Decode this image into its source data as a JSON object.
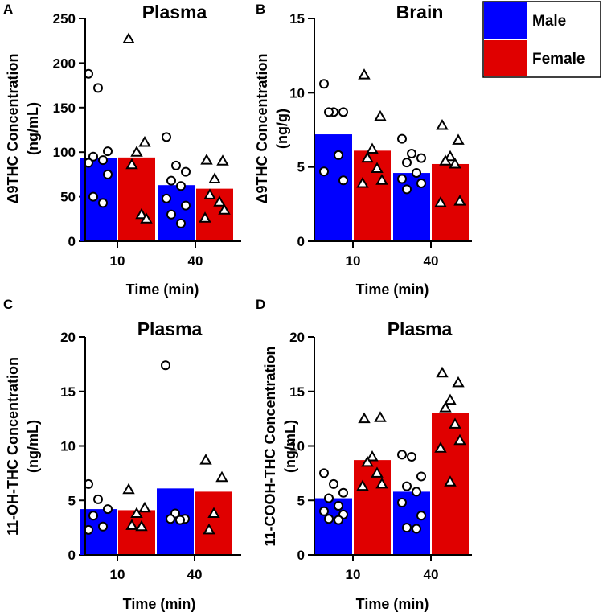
{
  "legend": [
    {
      "label": "Male",
      "color": "#0000ff"
    },
    {
      "label": "Female",
      "color": "#e00000"
    }
  ],
  "colors": {
    "male": "#0000ff",
    "female": "#e00000",
    "axis": "#000000",
    "marker_fill": "#ffffff"
  },
  "chart_data": [
    {
      "panel": "A",
      "type": "bar",
      "title": "Plasma",
      "xlabel": "Time (min)",
      "ylabel_line1": "Δ9THC Concentration",
      "ylabel_line2": "(ng/mL)",
      "categories": [
        "10",
        "40"
      ],
      "ylim": [
        0,
        250
      ],
      "yticks": [
        "0",
        "50",
        "100",
        "150",
        "200",
        "250"
      ],
      "series": [
        {
          "name": "Male",
          "marker": "circle",
          "values": [
            93,
            63
          ],
          "points": [
            [
              188,
              172,
              101,
              95,
              91,
              88,
              75,
              50,
              43
            ],
            [
              117,
              85,
              78,
              68,
              62,
              48,
              40,
              30,
              20
            ]
          ]
        },
        {
          "name": "Female",
          "marker": "triangle",
          "values": [
            94,
            59
          ],
          "points": [
            [
              227,
              111,
              100,
              86,
              30,
              25
            ],
            [
              91,
              90,
              70,
              52,
              44,
              35,
              26
            ]
          ]
        }
      ]
    },
    {
      "panel": "B",
      "type": "bar",
      "title": "Brain",
      "xlabel": "Time (min)",
      "ylabel_line1": "Δ9THC Concentration",
      "ylabel_line2": "(ng/g)",
      "categories": [
        "10",
        "40"
      ],
      "ylim": [
        0,
        15
      ],
      "yticks": [
        "0",
        "5",
        "10",
        "15"
      ],
      "series": [
        {
          "name": "Male",
          "marker": "circle",
          "values": [
            7.2,
            4.6
          ],
          "points": [
            [
              10.6,
              8.7,
              8.7,
              8.7,
              5.8,
              4.7,
              4.1
            ],
            [
              6.9,
              5.9,
              5.6,
              5.3,
              4.6,
              4.2,
              3.9,
              3.5
            ]
          ]
        },
        {
          "name": "Female",
          "marker": "triangle",
          "values": [
            6.1,
            5.2
          ],
          "points": [
            [
              11.2,
              8.4,
              6.2,
              5.6,
              4.9,
              4.1,
              3.9
            ],
            [
              7.8,
              6.8,
              5.7,
              5.4,
              5.2,
              2.7,
              2.6
            ]
          ]
        }
      ]
    },
    {
      "panel": "C",
      "type": "bar",
      "title": "Plasma",
      "xlabel": "Time (min)",
      "ylabel_line1": "11-OH-THC Concentration",
      "ylabel_line2": "(ng/mL)",
      "categories": [
        "10",
        "40"
      ],
      "ylim": [
        0,
        20
      ],
      "yticks": [
        "0",
        "5",
        "10",
        "15",
        "20"
      ],
      "series": [
        {
          "name": "Male",
          "marker": "circle",
          "values": [
            4.2,
            6.1
          ],
          "points": [
            [
              6.5,
              5.1,
              4.2,
              3.6,
              2.6,
              2.3
            ],
            [
              17.4,
              3.8,
              3.3,
              3.3,
              3.2
            ]
          ]
        },
        {
          "name": "Female",
          "marker": "triangle",
          "values": [
            4.1,
            5.8
          ],
          "points": [
            [
              6.0,
              4.3,
              3.8,
              2.7,
              2.6
            ],
            [
              8.7,
              7.1,
              3.8,
              2.3
            ]
          ]
        }
      ]
    },
    {
      "panel": "D",
      "type": "bar",
      "title": "Plasma",
      "xlabel": "Time (min)",
      "ylabel_line1": "11-COOH-THC Concentration",
      "ylabel_line2": "(ng/mL)",
      "categories": [
        "10",
        "40"
      ],
      "ylim": [
        0,
        20
      ],
      "yticks": [
        "0",
        "5",
        "10",
        "15",
        "20"
      ],
      "series": [
        {
          "name": "Male",
          "marker": "circle",
          "values": [
            5.2,
            5.8
          ],
          "points": [
            [
              7.5,
              6.5,
              5.7,
              5.2,
              4.5,
              4.0,
              3.7,
              3.3,
              3.2
            ],
            [
              9.2,
              9.0,
              7.2,
              6.3,
              5.8,
              4.8,
              3.6,
              2.5,
              2.4
            ]
          ]
        },
        {
          "name": "Female",
          "marker": "triangle",
          "values": [
            8.7,
            13.0
          ],
          "points": [
            [
              12.5,
              12.6,
              9.0,
              8.5,
              7.5,
              6.5,
              6.3
            ],
            [
              16.7,
              15.8,
              14.2,
              13.5,
              12.0,
              10.5,
              9.8,
              6.7
            ]
          ]
        }
      ]
    }
  ]
}
